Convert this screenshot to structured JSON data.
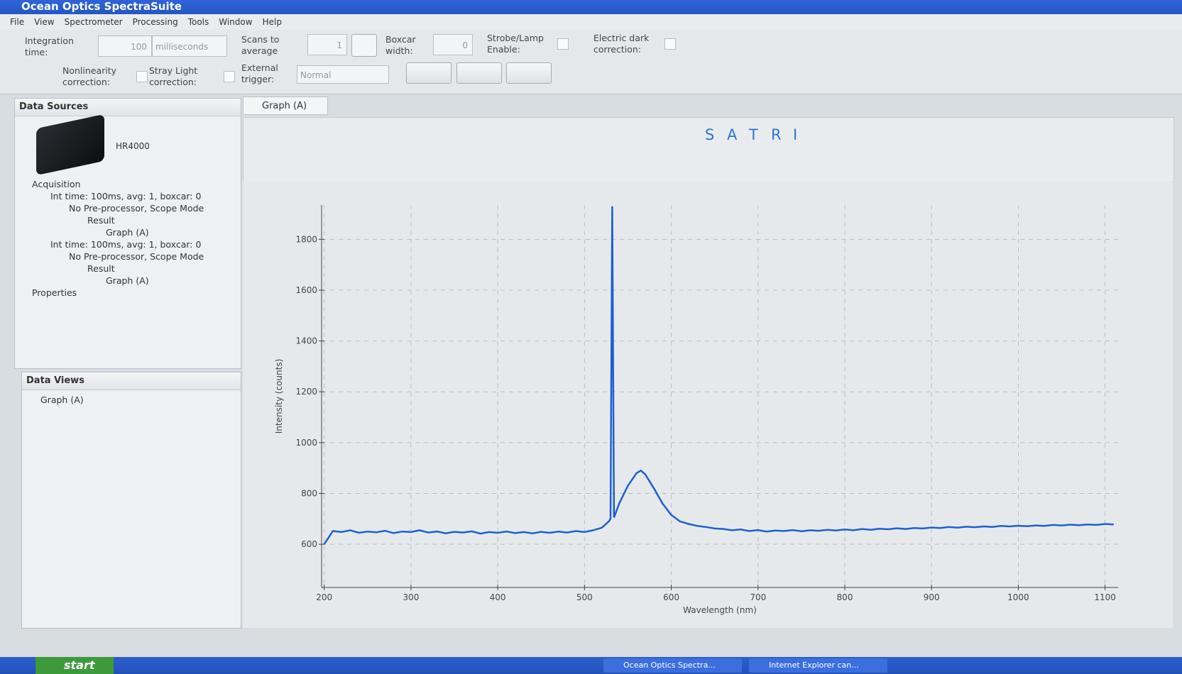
{
  "window": {
    "title": "Ocean Optics SpectraSuite"
  },
  "menu": [
    "File",
    "View",
    "Spectrometer",
    "Processing",
    "Tools",
    "Window",
    "Help"
  ],
  "toolbar": {
    "integration_time_label": "Integration time:",
    "integration_time": 100,
    "integration_unit": "milliseconds",
    "scans_label": "Scans to average",
    "scans": 1,
    "boxcar_label": "Boxcar width:",
    "boxcar": 0,
    "strobe_label": "Strobe/Lamp Enable:",
    "dark_label": "Electric dark correction:",
    "nonlinearity_label": "Nonlinearity correction:",
    "stray_label": "Stray Light correction:",
    "trigger_label": "External trigger:",
    "trigger": "Normal"
  },
  "data_sources": {
    "title": "Data Sources",
    "device": "HR4000",
    "tree": [
      {
        "label": "Acquisition",
        "children": [
          {
            "label": "Int time: 100ms, avg: 1, boxcar: 0",
            "children": [
              {
                "label": "No Pre-processor, Scope Mode",
                "children": [
                  {
                    "label": "Result",
                    "children": [
                      {
                        "label": "Graph (A)"
                      }
                    ]
                  }
                ]
              }
            ]
          },
          {
            "label": "Int time: 100ms, avg: 1, boxcar: 0",
            "children": [
              {
                "label": "No Pre-processor, Scope Mode",
                "children": [
                  {
                    "label": "Result",
                    "children": [
                      {
                        "label": "Graph (A)"
                      }
                    ]
                  }
                ]
              }
            ]
          }
        ]
      },
      {
        "label": "Properties"
      }
    ]
  },
  "data_views": {
    "title": "Data Views",
    "items": [
      "Graph (A)"
    ]
  },
  "tab": "Graph (A)",
  "graph_tools": [
    "S",
    "A",
    "T",
    "R",
    "I"
  ],
  "chart_data": {
    "type": "line",
    "x_label": "Wavelength (nm)",
    "y_label": "Intensity (counts)",
    "x": [
      200,
      210,
      220,
      230,
      240,
      250,
      260,
      270,
      280,
      290,
      300,
      310,
      320,
      330,
      340,
      350,
      360,
      370,
      380,
      390,
      400,
      410,
      420,
      430,
      440,
      450,
      460,
      470,
      480,
      490,
      500,
      510,
      520,
      528,
      530,
      532,
      534,
      540,
      550,
      560,
      565,
      570,
      580,
      590,
      600,
      610,
      620,
      630,
      640,
      650,
      660,
      670,
      680,
      690,
      700,
      710,
      720,
      730,
      740,
      750,
      760,
      770,
      780,
      790,
      800,
      810,
      820,
      830,
      840,
      850,
      860,
      870,
      880,
      890,
      900,
      910,
      920,
      930,
      940,
      950,
      960,
      970,
      980,
      990,
      1000,
      1010,
      1020,
      1030,
      1040,
      1050,
      1060,
      1070,
      1080,
      1090,
      1100,
      1110
    ],
    "series": [
      {
        "color": "#1f5fd0",
        "values": [
          600,
          652,
          648,
          655,
          645,
          650,
          647,
          653,
          644,
          650,
          648,
          655,
          646,
          650,
          643,
          649,
          646,
          651,
          642,
          648,
          645,
          650,
          644,
          648,
          643,
          649,
          645,
          650,
          646,
          652,
          648,
          655,
          665,
          690,
          700,
          1930,
          705,
          760,
          830,
          880,
          890,
          875,
          820,
          760,
          715,
          690,
          680,
          672,
          668,
          662,
          660,
          655,
          658,
          652,
          656,
          650,
          654,
          652,
          656,
          651,
          655,
          653,
          657,
          654,
          658,
          655,
          660,
          657,
          661,
          659,
          663,
          660,
          664,
          662,
          666,
          664,
          668,
          665,
          669,
          667,
          670,
          668,
          672,
          670,
          673,
          671,
          674,
          672,
          676,
          674,
          677,
          675,
          678,
          676,
          680,
          678
        ]
      }
    ],
    "xlim": [
      197,
      1115
    ],
    "xticks": [
      200,
      300,
      400,
      500,
      600,
      700,
      800,
      900,
      1000,
      1100
    ],
    "ylim": [
      430,
      1935
    ],
    "yticks": [
      600,
      800,
      1000,
      1200,
      1400,
      1600,
      1800
    ],
    "grid": true
  },
  "taskbar": {
    "start": "start",
    "tasks": [
      "Ocean Optics Spectra...",
      "Internet Explorer can..."
    ]
  }
}
